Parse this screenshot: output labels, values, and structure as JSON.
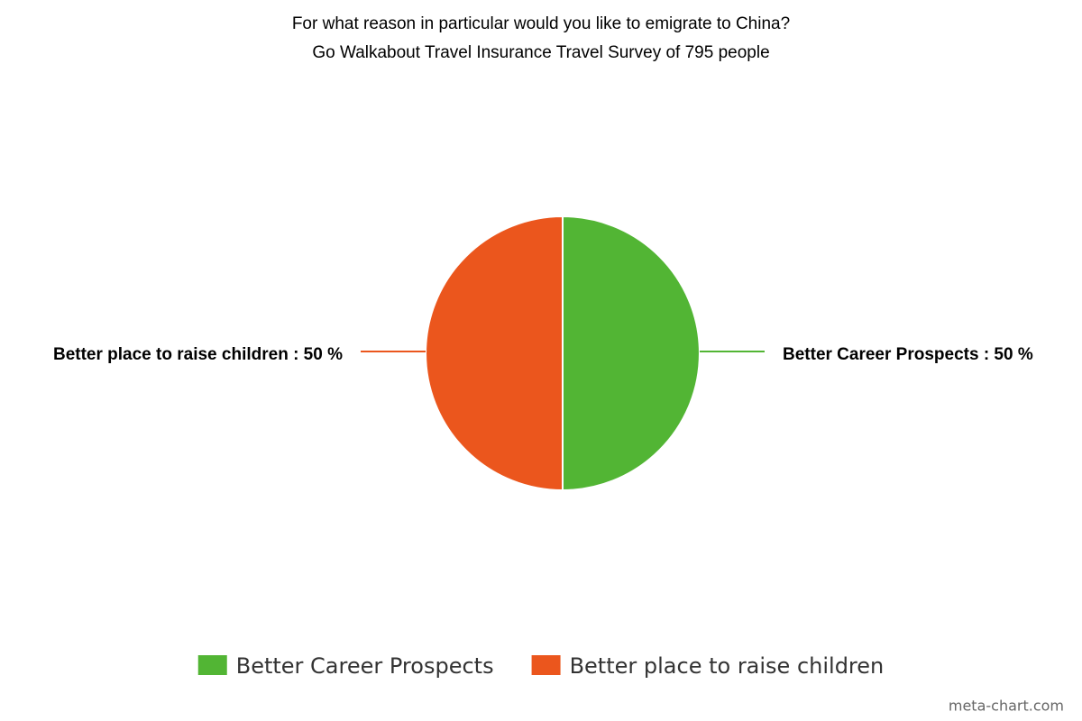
{
  "chart_data": {
    "type": "pie",
    "title": "For what reason in particular would you like to emigrate to China?",
    "subtitle": "Go Walkabout Travel Insurance Travel Survey of 795 people",
    "categories": [
      "Better Career Prospects",
      "Better place to raise children"
    ],
    "values": [
      50,
      50
    ],
    "value_labels": [
      "Better Career Prospects : 50 %",
      "Better place to raise children : 50 %"
    ],
    "colors": [
      "#52b534",
      "#eb561d"
    ],
    "legend": "bottom",
    "credit": "meta-chart.com"
  }
}
